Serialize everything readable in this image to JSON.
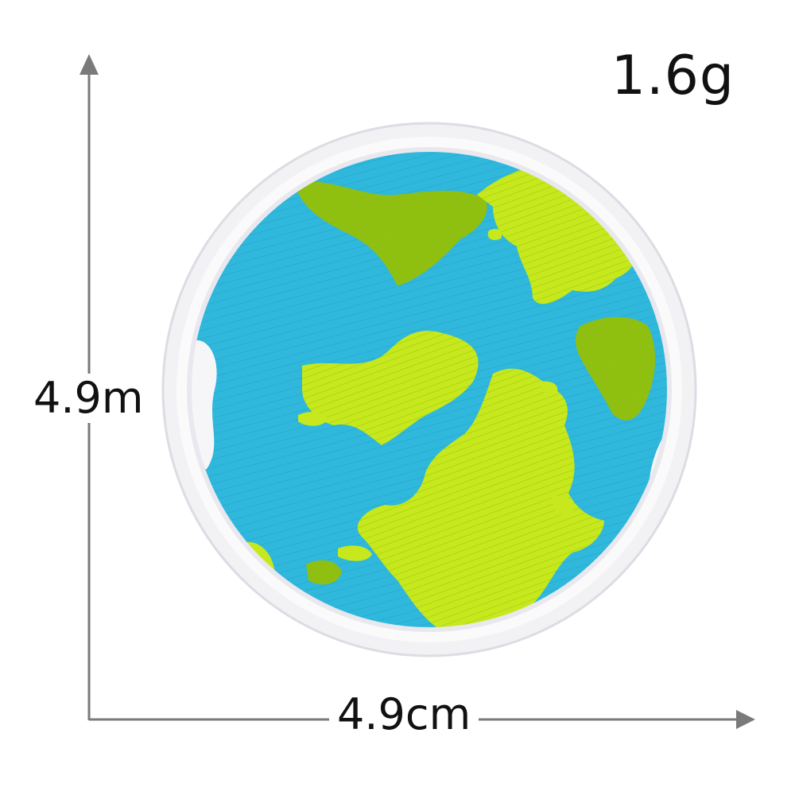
{
  "product": {
    "weight": "1.6g",
    "height": "4.9m",
    "width": "4.9cm"
  },
  "colors": {
    "ocean": "#2fb8dc",
    "land": "#c6e81c",
    "land_shadow": "#8fbf10",
    "border": "#f1f1f4",
    "arrow": "#7a7a7a"
  }
}
